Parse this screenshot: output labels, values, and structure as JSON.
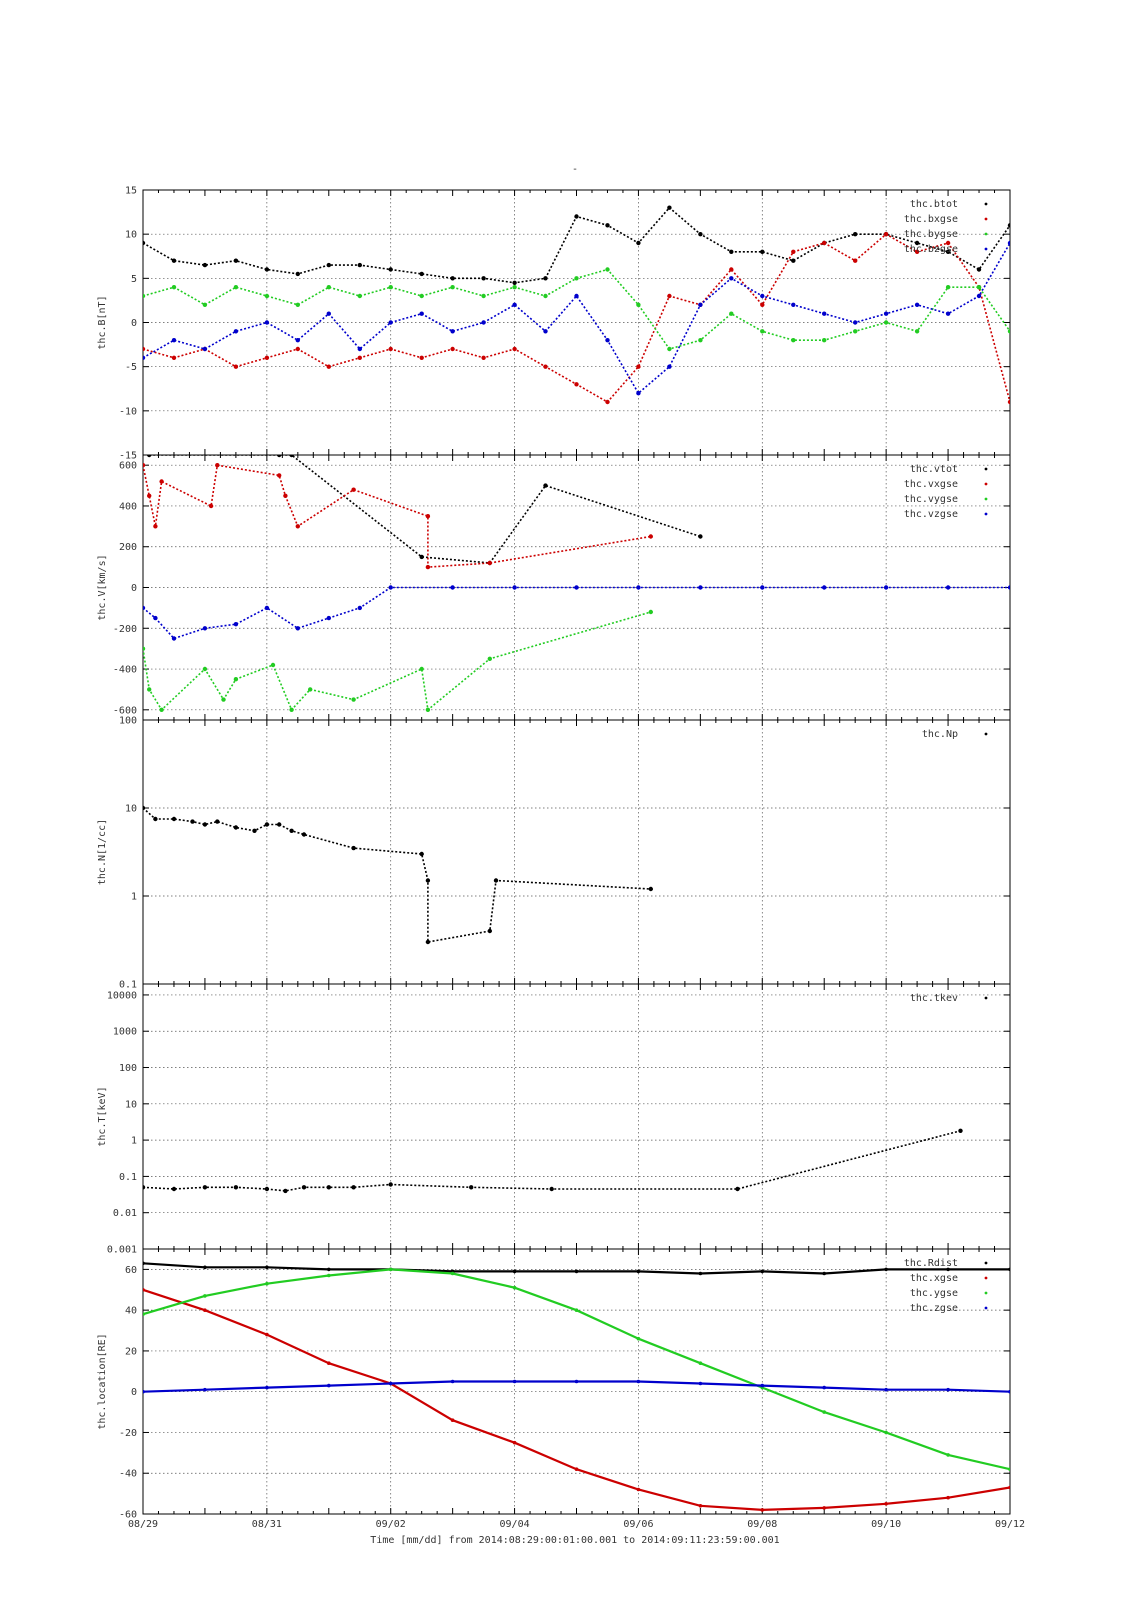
{
  "title": "-",
  "footer": "Time [mm/dd]  from 2014:08:29:00:01:00.001  to  2014:09:11:23:59:00.001",
  "x_tick_labels": [
    "08/29",
    "08/31",
    "09/02",
    "09/04",
    "09/06",
    "09/08",
    "09/10",
    "09/12"
  ],
  "chart_data": [
    {
      "type": "scatter",
      "ylabel": "thc.B[nT]",
      "ylim": [
        -15,
        15
      ],
      "yticks": [
        15,
        10,
        5,
        0,
        -5,
        -10,
        -15
      ],
      "x_unit": "days since 08/29",
      "xlim": [
        0,
        14
      ],
      "legend": [
        "thc.btot",
        "thc.bxgse",
        "thc.bygse",
        "thc.bzgse"
      ],
      "grid": true,
      "series": [
        {
          "name": "thc.btot",
          "color": "#000000",
          "x": [
            0,
            0.5,
            1,
            1.5,
            2,
            2.5,
            3,
            3.5,
            4,
            4.5,
            5,
            5.5,
            6,
            6.5,
            7,
            7.5,
            8,
            8.5,
            9,
            9.5,
            10,
            10.5,
            11,
            11.5,
            12,
            12.5,
            13,
            13.5,
            14
          ],
          "values": [
            9,
            7,
            6.5,
            7,
            6,
            5.5,
            6.5,
            6.5,
            6,
            5.5,
            5,
            5,
            4.5,
            5,
            12,
            11,
            9,
            13,
            10,
            8,
            8,
            7,
            9,
            10,
            10,
            9,
            8,
            6,
            11
          ]
        },
        {
          "name": "thc.bxgse",
          "color": "#cc0000",
          "x": [
            0,
            0.5,
            1,
            1.5,
            2,
            2.5,
            3,
            3.5,
            4,
            4.5,
            5,
            5.5,
            6,
            6.5,
            7,
            7.5,
            8,
            8.5,
            9,
            9.5,
            10,
            10.5,
            11,
            11.5,
            12,
            12.5,
            13,
            13.5,
            14
          ],
          "values": [
            -3,
            -4,
            -3,
            -5,
            -4,
            -3,
            -5,
            -4,
            -3,
            -4,
            -3,
            -4,
            -3,
            -5,
            -7,
            -9,
            -5,
            3,
            2,
            6,
            2,
            8,
            9,
            7,
            10,
            8,
            9,
            4,
            -9
          ]
        },
        {
          "name": "thc.bygse",
          "color": "#22cc22",
          "x": [
            0,
            0.5,
            1,
            1.5,
            2,
            2.5,
            3,
            3.5,
            4,
            4.5,
            5,
            5.5,
            6,
            6.5,
            7,
            7.5,
            8,
            8.5,
            9,
            9.5,
            10,
            10.5,
            11,
            11.5,
            12,
            12.5,
            13,
            13.5,
            14
          ],
          "values": [
            3,
            4,
            2,
            4,
            3,
            2,
            4,
            3,
            4,
            3,
            4,
            3,
            4,
            3,
            5,
            6,
            2,
            -3,
            -2,
            1,
            -1,
            -2,
            -2,
            -1,
            0,
            -1,
            4,
            4,
            -1
          ]
        },
        {
          "name": "thc.bzgse",
          "color": "#0000cc",
          "x": [
            0,
            0.5,
            1,
            1.5,
            2,
            2.5,
            3,
            3.5,
            4,
            4.5,
            5,
            5.5,
            6,
            6.5,
            7,
            7.5,
            8,
            8.5,
            9,
            9.5,
            10,
            10.5,
            11,
            11.5,
            12,
            12.5,
            13,
            13.5,
            14
          ],
          "values": [
            -4,
            -2,
            -3,
            -1,
            0,
            -2,
            1,
            -3,
            0,
            1,
            -1,
            0,
            2,
            -1,
            3,
            -2,
            -8,
            -5,
            2,
            5,
            3,
            2,
            1,
            0,
            1,
            2,
            1,
            3,
            9
          ]
        }
      ]
    },
    {
      "type": "scatter",
      "ylabel": "thc.V[km/s]",
      "ylim": [
        -650,
        650
      ],
      "yticks": [
        600,
        400,
        200,
        0,
        -200,
        -400,
        -600
      ],
      "x_unit": "days since 08/29",
      "xlim": [
        0,
        14
      ],
      "legend": [
        "thc.vtot",
        "thc.vxgse",
        "thc.vygse",
        "thc.vzgse"
      ],
      "grid": true,
      "series": [
        {
          "name": "thc.vtot",
          "color": "#000000",
          "x": [
            0.1,
            2.2,
            2.4,
            4.5,
            5.6,
            6.5,
            9.0
          ],
          "values": [
            650,
            650,
            650,
            150,
            120,
            500,
            250
          ]
        },
        {
          "name": "thc.vxgse",
          "color": "#cc0000",
          "x": [
            0,
            0.1,
            0.2,
            0.3,
            1.1,
            1.2,
            2.2,
            2.3,
            2.5,
            3.4,
            4.6,
            4.6,
            5.6,
            8.2
          ],
          "values": [
            600,
            450,
            300,
            520,
            400,
            600,
            550,
            450,
            300,
            480,
            350,
            100,
            120,
            250
          ]
        },
        {
          "name": "thc.vygse",
          "color": "#22cc22",
          "x": [
            0,
            0.1,
            0.3,
            1.0,
            1.3,
            1.5,
            2.1,
            2.4,
            2.7,
            3.4,
            4.5,
            4.6,
            5.6,
            8.2
          ],
          "values": [
            -300,
            -500,
            -600,
            -400,
            -550,
            -450,
            -380,
            -600,
            -500,
            -550,
            -400,
            -600,
            -350,
            -120
          ]
        },
        {
          "name": "thc.vzgse",
          "color": "#0000cc",
          "x": [
            0,
            0.2,
            0.5,
            1,
            1.5,
            2,
            2.5,
            3,
            3.5,
            4,
            5,
            6,
            7,
            8,
            9,
            10,
            11,
            12,
            13,
            14
          ],
          "values": [
            -100,
            -150,
            -250,
            -200,
            -180,
            -100,
            -200,
            -150,
            -100,
            0,
            0,
            0,
            0,
            0,
            0,
            0,
            0,
            0,
            0,
            0
          ]
        }
      ]
    },
    {
      "type": "scatter",
      "ylabel": "thc.N[1/cc]",
      "yscale": "log",
      "ylim": [
        0.1,
        100
      ],
      "yticks": [
        100,
        10,
        1,
        0.1
      ],
      "x_unit": "days since 08/29",
      "xlim": [
        0,
        14
      ],
      "legend": [
        "thc.Np"
      ],
      "grid": true,
      "series": [
        {
          "name": "thc.Np",
          "color": "#000000",
          "x": [
            0,
            0.2,
            0.5,
            0.8,
            1.0,
            1.2,
            1.5,
            1.8,
            2.0,
            2.2,
            2.4,
            2.6,
            3.4,
            4.5,
            4.6,
            4.6,
            5.6,
            5.7,
            8.2
          ],
          "values": [
            10,
            7.5,
            7.5,
            7,
            6.5,
            7,
            6,
            5.5,
            6.5,
            6.5,
            5.5,
            5,
            3.5,
            3,
            1.5,
            0.3,
            0.4,
            1.5,
            1.2
          ]
        }
      ]
    },
    {
      "type": "scatter",
      "ylabel": "thc.T[keV]",
      "yscale": "log",
      "ylim": [
        0.001,
        20000
      ],
      "yticks": [
        10000,
        1000,
        100,
        10,
        1,
        0.1,
        0.01,
        0.001
      ],
      "x_unit": "days since 08/29",
      "xlim": [
        0,
        14
      ],
      "legend": [
        "thc.tkev"
      ],
      "grid": true,
      "series": [
        {
          "name": "thc.tkev",
          "color": "#000000",
          "x": [
            0,
            0.5,
            1.0,
            1.5,
            2.0,
            2.3,
            2.6,
            3.0,
            3.4,
            4.0,
            5.3,
            6.6,
            9.6,
            13.2
          ],
          "values": [
            0.05,
            0.045,
            0.05,
            0.05,
            0.045,
            0.04,
            0.05,
            0.05,
            0.05,
            0.06,
            0.05,
            0.045,
            0.045,
            1.8
          ]
        }
      ]
    },
    {
      "type": "line",
      "ylabel": "thc.location[RE]",
      "ylim": [
        -60,
        70
      ],
      "yticks": [
        60,
        40,
        20,
        0,
        -20,
        -40,
        -60
      ],
      "x_unit": "days since 08/29",
      "xlim": [
        0,
        14
      ],
      "legend": [
        "thc.Rdist",
        "thc.xgse",
        "thc.ygse",
        "thc.zgse"
      ],
      "grid": true,
      "series": [
        {
          "name": "thc.Rdist",
          "color": "#000000",
          "x": [
            0,
            1,
            2,
            3,
            4,
            5,
            6,
            7,
            8,
            9,
            10,
            11,
            12,
            13,
            14
          ],
          "values": [
            63,
            61,
            61,
            60,
            60,
            59,
            59,
            59,
            59,
            58,
            59,
            58,
            60,
            60,
            60
          ]
        },
        {
          "name": "thc.xgse",
          "color": "#cc0000",
          "x": [
            0,
            1,
            2,
            3,
            4,
            5,
            6,
            7,
            8,
            9,
            10,
            11,
            12,
            13,
            14
          ],
          "values": [
            50,
            40,
            28,
            14,
            4,
            -14,
            -25,
            -38,
            -48,
            -56,
            -58,
            -57,
            -55,
            -52,
            -47
          ]
        },
        {
          "name": "thc.ygse",
          "color": "#22cc22",
          "x": [
            0,
            1,
            2,
            3,
            4,
            5,
            6,
            7,
            8,
            9,
            10,
            11,
            12,
            13,
            14
          ],
          "values": [
            38,
            47,
            53,
            57,
            60,
            58,
            51,
            40,
            26,
            14,
            2,
            -10,
            -20,
            -31,
            -38
          ]
        },
        {
          "name": "thc.zgse",
          "color": "#0000cc",
          "x": [
            0,
            1,
            2,
            3,
            4,
            5,
            6,
            7,
            8,
            9,
            10,
            11,
            12,
            13,
            14
          ],
          "values": [
            0,
            1,
            2,
            3,
            4,
            5,
            5,
            5,
            5,
            4,
            3,
            2,
            1,
            1,
            0
          ]
        }
      ]
    }
  ]
}
